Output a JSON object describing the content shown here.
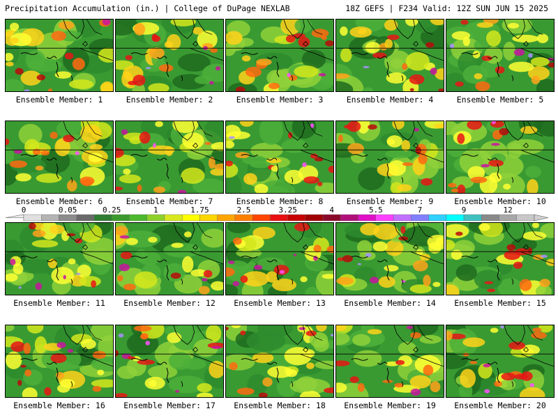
{
  "header": {
    "title": "Precipitation Accumulation (in.) | College of DuPage NEXLAB",
    "run_info": "18Z GEFS | F234 Valid: 12Z SUN JUN 15 2025"
  },
  "colorbar": {
    "tick_labels": [
      "0",
      "0.05",
      "0.25",
      "1",
      "1.75",
      "2.5",
      "3.25",
      "4",
      "5.5",
      "7",
      "9",
      "12"
    ],
    "colors": [
      "#e0e0e0",
      "#b4b4b4",
      "#8c8c8c",
      "#6a6a6a",
      "#2e7d32",
      "#3b9a2e",
      "#4cb82c",
      "#8ed12a",
      "#d8e81e",
      "#ffff00",
      "#ffd700",
      "#ffa500",
      "#ff7f00",
      "#ff4500",
      "#e81010",
      "#c80000",
      "#a00000",
      "#8b0a2a",
      "#b0107a",
      "#e010c8",
      "#ff40ff",
      "#c070ff",
      "#8080ff",
      "#30d0ff",
      "#00ffff",
      "#40c0c0",
      "#8a8a8a",
      "#a8a8a8",
      "#c8c8c8"
    ]
  },
  "members": [
    {
      "label": "Ensemble Member: 1"
    },
    {
      "label": "Ensemble Member: 2"
    },
    {
      "label": "Ensemble Member: 3"
    },
    {
      "label": "Ensemble Member: 4"
    },
    {
      "label": "Ensemble Member: 5"
    },
    {
      "label": "Ensemble Member: 6"
    },
    {
      "label": "Ensemble Member: 7"
    },
    {
      "label": "Ensemble Member: 8"
    },
    {
      "label": "Ensemble Member: 9"
    },
    {
      "label": "Ensemble Member: 10"
    },
    {
      "label": "Ensemble Member: 11"
    },
    {
      "label": "Ensemble Member: 12"
    },
    {
      "label": "Ensemble Member: 13"
    },
    {
      "label": "Ensemble Member: 14"
    },
    {
      "label": "Ensemble Member: 15"
    },
    {
      "label": "Ensemble Member: 16"
    },
    {
      "label": "Ensemble Member: 17"
    },
    {
      "label": "Ensemble Member: 18"
    },
    {
      "label": "Ensemble Member: 19"
    },
    {
      "label": "Ensemble Member: 20"
    }
  ]
}
